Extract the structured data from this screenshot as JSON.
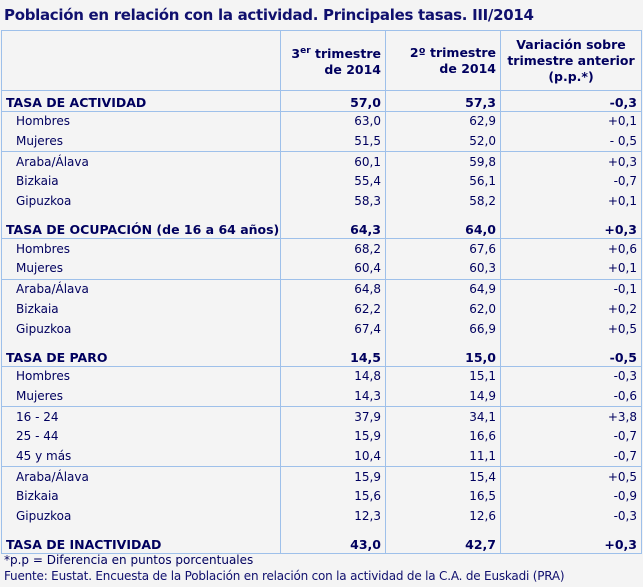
{
  "title": "Población en relación con la actividad. Principales tasas. III/2014",
  "headers": {
    "col1_pre": "3",
    "col1_sup": "er",
    "col1_post": " trimestre",
    "col1_line2": "de 2014",
    "col2_line1": "2º trimestre",
    "col2_line2": "de 2014",
    "col3_line1": "Variación sobre",
    "col3_line2": "trimestre anterior",
    "col3_line3": "(p.p.*)"
  },
  "groups": [
    {
      "label": "TASA DE ACTIVIDAD",
      "values": [
        "57,0",
        "57,3",
        "-0,3"
      ],
      "subgroups": [
        [
          [
            "Hombres",
            "63,0",
            "62,9",
            "+0,1"
          ],
          [
            "Mujeres",
            "51,5",
            "52,0",
            "- 0,5"
          ]
        ],
        [
          [
            "Araba/Álava",
            "60,1",
            "59,8",
            "+0,3"
          ],
          [
            "Bizkaia",
            "55,4",
            "56,1",
            "-0,7"
          ],
          [
            "Gipuzkoa",
            "58,3",
            "58,2",
            "+0,1"
          ]
        ]
      ]
    },
    {
      "label": "TASA DE OCUPACIÓN (de 16 a 64 años)",
      "values": [
        "64,3",
        "64,0",
        "+0,3"
      ],
      "subgroups": [
        [
          [
            "Hombres",
            "68,2",
            "67,6",
            "+0,6"
          ],
          [
            "Mujeres",
            "60,4",
            "60,3",
            "+0,1"
          ]
        ],
        [
          [
            "Araba/Álava",
            "64,8",
            "64,9",
            "-0,1"
          ],
          [
            "Bizkaia",
            "62,2",
            "62,0",
            "+0,2"
          ],
          [
            "Gipuzkoa",
            "67,4",
            "66,9",
            "+0,5"
          ]
        ]
      ]
    },
    {
      "label": "TASA DE PARO",
      "values": [
        "14,5",
        "15,0",
        "-0,5"
      ],
      "subgroups": [
        [
          [
            "Hombres",
            "14,8",
            "15,1",
            "-0,3"
          ],
          [
            "Mujeres",
            "14,3",
            "14,9",
            "-0,6"
          ]
        ],
        [
          [
            "16 - 24",
            "37,9",
            "34,1",
            "+3,8"
          ],
          [
            "25 - 44",
            "15,9",
            "16,6",
            "-0,7"
          ],
          [
            "45 y más",
            "10,4",
            "11,1",
            "-0,7"
          ]
        ],
        [
          [
            "Araba/Álava",
            "15,9",
            "15,4",
            "+0,5"
          ],
          [
            "Bizkaia",
            "15,6",
            "16,5",
            "-0,9"
          ],
          [
            "Gipuzkoa",
            "12,3",
            "12,6",
            "-0,3"
          ]
        ]
      ]
    },
    {
      "label": "TASA DE INACTIVIDAD",
      "values": [
        "43,0",
        "42,7",
        "+0,3"
      ],
      "subgroups": []
    }
  ],
  "footnote": "*p.p = Diferencia en puntos porcentuales",
  "source": "Fuente: Eustat. Encuesta de la Población en relación con la actividad de la C.A. de Euskadi (PRA)"
}
